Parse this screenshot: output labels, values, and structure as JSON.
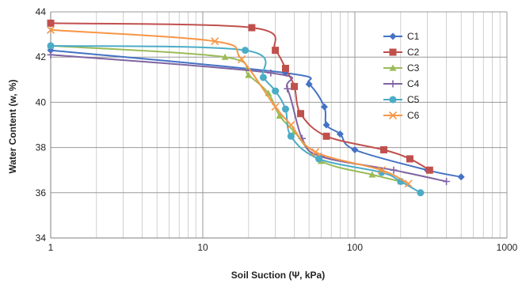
{
  "chart_data": {
    "type": "line",
    "xscale": "log",
    "xlabel": "Soil Suction (Ψ, kPa)",
    "ylabel": "Water Content (w, %)",
    "xlim": [
      1,
      1000
    ],
    "ylim": [
      34,
      44
    ],
    "xticks": [
      1,
      10,
      100,
      1000
    ],
    "yticks": [
      34,
      36,
      38,
      40,
      42,
      44
    ],
    "grid": true,
    "legend_position": "top-right",
    "series": [
      {
        "name": "C1",
        "color": "#4472C4",
        "marker": "diamond",
        "points": [
          [
            1,
            42.3
          ],
          [
            35,
            41.3
          ],
          [
            50,
            40.8
          ],
          [
            63,
            39.8
          ],
          [
            65,
            39.0
          ],
          [
            80,
            38.6
          ],
          [
            100,
            37.9
          ],
          [
            300,
            37.0
          ],
          [
            500,
            36.7
          ]
        ]
      },
      {
        "name": "C2",
        "color": "#C0504D",
        "marker": "square",
        "points": [
          [
            1,
            43.5
          ],
          [
            21,
            43.3
          ],
          [
            30,
            42.3
          ],
          [
            35,
            41.5
          ],
          [
            40,
            40.7
          ],
          [
            44,
            39.5
          ],
          [
            65,
            38.5
          ],
          [
            155,
            37.9
          ],
          [
            230,
            37.5
          ],
          [
            310,
            37.0
          ]
        ]
      },
      {
        "name": "C3",
        "color": "#9BBB59",
        "marker": "triangle",
        "points": [
          [
            1,
            42.5
          ],
          [
            14,
            42.0
          ],
          [
            20,
            41.2
          ],
          [
            27,
            40.4
          ],
          [
            32,
            39.4
          ],
          [
            40,
            38.7
          ],
          [
            60,
            37.4
          ],
          [
            130,
            36.8
          ],
          [
            200,
            36.5
          ]
        ]
      },
      {
        "name": "C4",
        "color": "#8064A2",
        "marker": "plus",
        "points": [
          [
            1,
            42.1
          ],
          [
            28,
            41.3
          ],
          [
            36,
            40.6
          ],
          [
            45,
            38.4
          ],
          [
            60,
            37.6
          ],
          [
            180,
            37.0
          ],
          [
            400,
            36.5
          ]
        ]
      },
      {
        "name": "C5",
        "color": "#4BACC6",
        "marker": "circle",
        "points": [
          [
            1,
            42.5
          ],
          [
            19,
            42.3
          ],
          [
            25,
            41.1
          ],
          [
            30,
            40.5
          ],
          [
            35,
            39.7
          ],
          [
            38,
            38.5
          ],
          [
            58,
            37.5
          ],
          [
            150,
            36.9
          ],
          [
            200,
            36.5
          ],
          [
            270,
            36.0
          ]
        ]
      },
      {
        "name": "C6",
        "color": "#F79646",
        "marker": "cross",
        "points": [
          [
            1,
            43.2
          ],
          [
            12,
            42.7
          ],
          [
            18,
            41.9
          ],
          [
            30,
            39.8
          ],
          [
            38,
            39.0
          ],
          [
            55,
            37.8
          ],
          [
            150,
            37.0
          ],
          [
            225,
            36.4
          ]
        ]
      }
    ]
  }
}
